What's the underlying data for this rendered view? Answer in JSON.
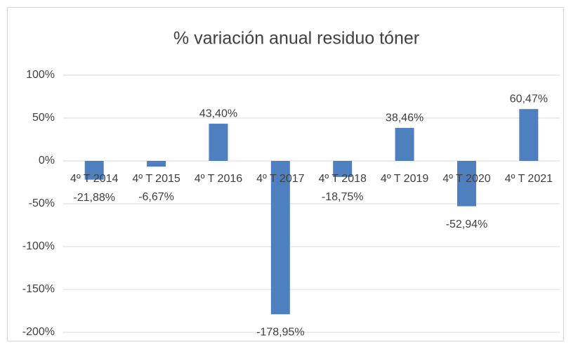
{
  "chart_data": {
    "type": "bar",
    "title": "% variación anual residuo tóner",
    "categories": [
      "4º T 2014",
      "4º T 2015",
      "4º T 2016",
      "4º T 2017",
      "4º T 2018",
      "4º T 2019",
      "4º T 2020",
      "4º T 2021"
    ],
    "values": [
      -21.88,
      -6.67,
      43.4,
      -178.95,
      -18.75,
      38.46,
      -52.94,
      60.47
    ],
    "value_labels": [
      "-21,88%",
      "-6,67%",
      "43,40%",
      "-178,95%",
      "-18,75%",
      "38,46%",
      "-52,94%",
      "60,47%"
    ],
    "color": "#4e7fbf",
    "ylim": [
      -200,
      100
    ],
    "yticks": [
      {
        "value": -200,
        "label": "-200%"
      },
      {
        "value": -150,
        "label": "-150%"
      },
      {
        "value": -100,
        "label": "-100%"
      },
      {
        "value": -50,
        "label": "-50%"
      },
      {
        "value": 0,
        "label": "0%"
      },
      {
        "value": 50,
        "label": "50%"
      },
      {
        "value": 100,
        "label": "100%"
      }
    ],
    "grid": true
  }
}
